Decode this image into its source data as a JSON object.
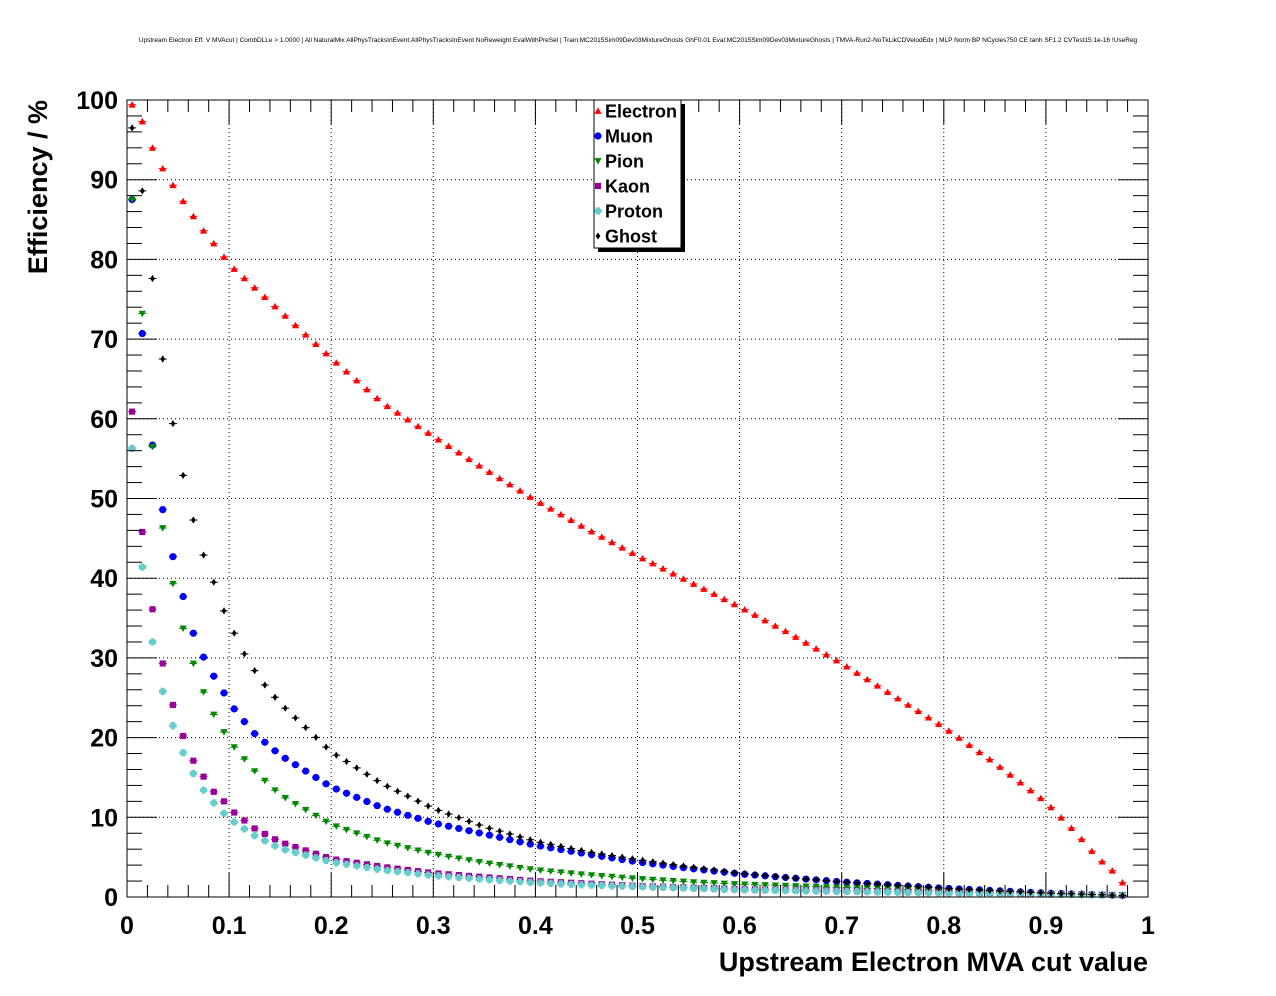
{
  "chart_data": {
    "type": "scatter",
    "title": "Upstream Electron Eff. V MVAcut | CombDLLe > 1.0000 | All NaturalMix AllPhysTracksInEvent:AllPhysTracksInEvent NoReweight EvalWithPreSel | Train:MC2015Sim09Dev03MixtureGhosts GhF0.01 Eval:MC2015Sim09Dev03MixtureGhosts | TMVA-Run2-NoTkLikCDVelodEdx | MLP Norm BP NCycles750 CE tanh SF1.2 CVTest15:1e-16 !UseReg",
    "xlabel": "Upstream Electron MVA cut value",
    "ylabel": "Efficiency / %",
    "xlim": [
      0,
      1
    ],
    "ylim": [
      0,
      100
    ],
    "x_ticks": [
      "0",
      "0.1",
      "0.2",
      "0.3",
      "0.4",
      "0.5",
      "0.6",
      "0.7",
      "0.8",
      "0.9",
      "1"
    ],
    "y_ticks": [
      "0",
      "10",
      "20",
      "30",
      "40",
      "50",
      "60",
      "70",
      "80",
      "90",
      "100"
    ],
    "grid": true,
    "legend_position": "top-center",
    "x_bins": {
      "start": 0.005,
      "step": 0.01,
      "count": 98
    },
    "series": [
      {
        "name": "Electron",
        "color": "#ff0000",
        "marker": "triangle-up",
        "anchors": [
          [
            0.005,
            99.4
          ],
          [
            0.015,
            97.3
          ],
          [
            0.025,
            94.0
          ],
          [
            0.035,
            91.4
          ],
          [
            0.045,
            89.3
          ],
          [
            0.055,
            87.3
          ],
          [
            0.065,
            85.4
          ],
          [
            0.075,
            83.6
          ],
          [
            0.085,
            82.0
          ],
          [
            0.095,
            80.3
          ],
          [
            0.105,
            78.8
          ],
          [
            0.15,
            73.5
          ],
          [
            0.2,
            67.6
          ],
          [
            0.25,
            62.0
          ],
          [
            0.3,
            57.8
          ],
          [
            0.35,
            53.7
          ],
          [
            0.4,
            49.8
          ],
          [
            0.45,
            46.2
          ],
          [
            0.5,
            42.8
          ],
          [
            0.55,
            39.6
          ],
          [
            0.6,
            36.4
          ],
          [
            0.65,
            33.0
          ],
          [
            0.7,
            29.3
          ],
          [
            0.75,
            25.3
          ],
          [
            0.8,
            21.3
          ],
          [
            0.85,
            16.8
          ],
          [
            0.9,
            11.9
          ],
          [
            0.93,
            8.0
          ],
          [
            0.95,
            5.0
          ],
          [
            0.965,
            3.3
          ],
          [
            0.975,
            1.8
          ],
          [
            0.985,
            0.5
          ]
        ]
      },
      {
        "name": "Muon",
        "color": "#0000ff",
        "marker": "circle",
        "anchors": [
          [
            0.005,
            87.5
          ],
          [
            0.015,
            70.7
          ],
          [
            0.025,
            56.7
          ],
          [
            0.035,
            48.6
          ],
          [
            0.045,
            42.7
          ],
          [
            0.055,
            37.7
          ],
          [
            0.065,
            33.1
          ],
          [
            0.075,
            30.1
          ],
          [
            0.085,
            27.7
          ],
          [
            0.095,
            25.6
          ],
          [
            0.105,
            23.6
          ],
          [
            0.115,
            22.0
          ],
          [
            0.125,
            20.5
          ],
          [
            0.15,
            17.8
          ],
          [
            0.2,
            13.8
          ],
          [
            0.25,
            11.2
          ],
          [
            0.3,
            9.3
          ],
          [
            0.35,
            7.9
          ],
          [
            0.4,
            6.5
          ],
          [
            0.45,
            5.4
          ],
          [
            0.5,
            4.4
          ],
          [
            0.55,
            3.6
          ],
          [
            0.6,
            2.9
          ],
          [
            0.65,
            2.4
          ],
          [
            0.7,
            1.9
          ],
          [
            0.75,
            1.5
          ],
          [
            0.8,
            1.1
          ],
          [
            0.85,
            0.8
          ],
          [
            0.9,
            0.5
          ],
          [
            0.95,
            0.3
          ],
          [
            0.985,
            0.1
          ]
        ]
      },
      {
        "name": "Pion",
        "color": "#008800",
        "marker": "triangle-down",
        "anchors": [
          [
            0.005,
            87.5
          ],
          [
            0.015,
            73.2
          ],
          [
            0.025,
            56.5
          ],
          [
            0.035,
            46.3
          ],
          [
            0.045,
            39.3
          ],
          [
            0.055,
            33.7
          ],
          [
            0.065,
            29.3
          ],
          [
            0.075,
            25.7
          ],
          [
            0.085,
            22.9
          ],
          [
            0.095,
            20.7
          ],
          [
            0.105,
            18.8
          ],
          [
            0.125,
            15.8
          ],
          [
            0.15,
            12.8
          ],
          [
            0.2,
            9.1
          ],
          [
            0.25,
            6.9
          ],
          [
            0.3,
            5.4
          ],
          [
            0.35,
            4.3
          ],
          [
            0.4,
            3.4
          ],
          [
            0.45,
            2.8
          ],
          [
            0.5,
            2.3
          ],
          [
            0.55,
            1.9
          ],
          [
            0.6,
            1.6
          ],
          [
            0.65,
            1.4
          ],
          [
            0.7,
            1.2
          ],
          [
            0.75,
            1.0
          ],
          [
            0.8,
            0.8
          ],
          [
            0.85,
            0.6
          ],
          [
            0.9,
            0.4
          ],
          [
            0.95,
            0.3
          ],
          [
            0.985,
            0.2
          ]
        ]
      },
      {
        "name": "Kaon",
        "color": "#990099",
        "marker": "square",
        "anchors": [
          [
            0.005,
            60.9
          ],
          [
            0.015,
            45.8
          ],
          [
            0.025,
            36.1
          ],
          [
            0.035,
            29.3
          ],
          [
            0.045,
            24.1
          ],
          [
            0.055,
            20.2
          ],
          [
            0.065,
            17.1
          ],
          [
            0.075,
            15.1
          ],
          [
            0.085,
            13.2
          ],
          [
            0.095,
            12.0
          ],
          [
            0.105,
            10.6
          ],
          [
            0.125,
            8.6
          ],
          [
            0.15,
            6.9
          ],
          [
            0.2,
            4.8
          ],
          [
            0.25,
            3.8
          ],
          [
            0.3,
            3.0
          ],
          [
            0.35,
            2.5
          ],
          [
            0.4,
            2.0
          ],
          [
            0.45,
            1.7
          ],
          [
            0.5,
            1.4
          ],
          [
            0.55,
            1.2
          ],
          [
            0.6,
            1.0
          ],
          [
            0.7,
            0.8
          ],
          [
            0.8,
            0.6
          ],
          [
            0.9,
            0.4
          ],
          [
            0.985,
            0.2
          ]
        ]
      },
      {
        "name": "Proton",
        "color": "#66cccc",
        "marker": "cross",
        "anchors": [
          [
            0.005,
            56.3
          ],
          [
            0.015,
            41.4
          ],
          [
            0.025,
            32.0
          ],
          [
            0.035,
            25.8
          ],
          [
            0.045,
            21.5
          ],
          [
            0.055,
            18.1
          ],
          [
            0.065,
            15.5
          ],
          [
            0.075,
            13.4
          ],
          [
            0.085,
            11.8
          ],
          [
            0.095,
            10.5
          ],
          [
            0.105,
            9.4
          ],
          [
            0.125,
            7.7
          ],
          [
            0.15,
            6.1
          ],
          [
            0.2,
            4.4
          ],
          [
            0.25,
            3.4
          ],
          [
            0.3,
            2.7
          ],
          [
            0.35,
            2.2
          ],
          [
            0.4,
            1.8
          ],
          [
            0.45,
            1.5
          ],
          [
            0.5,
            1.3
          ],
          [
            0.55,
            1.1
          ],
          [
            0.6,
            0.9
          ],
          [
            0.7,
            0.7
          ],
          [
            0.8,
            0.5
          ],
          [
            0.9,
            0.35
          ],
          [
            0.985,
            0.2
          ]
        ]
      },
      {
        "name": "Ghost",
        "color": "#000000",
        "marker": "diamond",
        "anchors": [
          [
            0.005,
            96.5
          ],
          [
            0.015,
            88.6
          ],
          [
            0.025,
            77.6
          ],
          [
            0.035,
            67.5
          ],
          [
            0.045,
            59.4
          ],
          [
            0.055,
            52.9
          ],
          [
            0.065,
            47.3
          ],
          [
            0.075,
            42.9
          ],
          [
            0.085,
            39.5
          ],
          [
            0.095,
            35.9
          ],
          [
            0.105,
            33.1
          ],
          [
            0.115,
            30.5
          ],
          [
            0.125,
            28.4
          ],
          [
            0.135,
            26.6
          ],
          [
            0.15,
            24.3
          ],
          [
            0.2,
            18.2
          ],
          [
            0.25,
            14.2
          ],
          [
            0.3,
            11.1
          ],
          [
            0.35,
            8.8
          ],
          [
            0.4,
            7.0
          ],
          [
            0.45,
            5.7
          ],
          [
            0.5,
            4.7
          ],
          [
            0.55,
            3.8
          ],
          [
            0.6,
            3.0
          ],
          [
            0.65,
            2.4
          ],
          [
            0.7,
            1.9
          ],
          [
            0.75,
            1.5
          ],
          [
            0.8,
            1.1
          ],
          [
            0.85,
            0.8
          ],
          [
            0.9,
            0.5
          ],
          [
            0.95,
            0.3
          ],
          [
            0.985,
            0.15
          ]
        ]
      }
    ]
  }
}
